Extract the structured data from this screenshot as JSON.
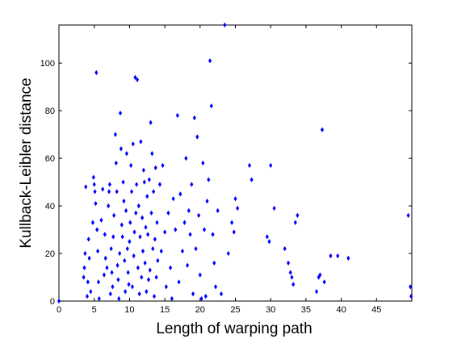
{
  "chart_data": {
    "type": "scatter",
    "title": "",
    "xlabel": "Length of warping path",
    "ylabel": "Kullback-Leibler distance",
    "xlim": [
      0,
      50
    ],
    "ylim": [
      0,
      116
    ],
    "xticks": [
      0,
      5,
      10,
      15,
      20,
      25,
      30,
      35,
      40,
      45
    ],
    "yticks": [
      0,
      20,
      40,
      60,
      80,
      100
    ],
    "grid": false,
    "legend": "none",
    "marker_color": "#0000ff",
    "series": [
      {
        "name": "",
        "points": [
          [
            0,
            0
          ],
          [
            3.5,
            10
          ],
          [
            3.6,
            14
          ],
          [
            3.7,
            20
          ],
          [
            3.8,
            48
          ],
          [
            4.0,
            2
          ],
          [
            4.1,
            8
          ],
          [
            4.2,
            26
          ],
          [
            4.3,
            18
          ],
          [
            4.5,
            4
          ],
          [
            4.8,
            33
          ],
          [
            4.9,
            52
          ],
          [
            5.0,
            49
          ],
          [
            5.1,
            46
          ],
          [
            5.2,
            41
          ],
          [
            5.3,
            96
          ],
          [
            5.4,
            30
          ],
          [
            5.5,
            21
          ],
          [
            5.6,
            8
          ],
          [
            5.7,
            1
          ],
          [
            6.0,
            34
          ],
          [
            6.2,
            47
          ],
          [
            6.4,
            11
          ],
          [
            6.5,
            28
          ],
          [
            6.6,
            18
          ],
          [
            6.8,
            14
          ],
          [
            7.0,
            40
          ],
          [
            7.1,
            46
          ],
          [
            7.2,
            49
          ],
          [
            7.3,
            3
          ],
          [
            7.4,
            22
          ],
          [
            7.5,
            12
          ],
          [
            7.6,
            6
          ],
          [
            7.7,
            27
          ],
          [
            7.8,
            36
          ],
          [
            8.0,
            70
          ],
          [
            8.1,
            58
          ],
          [
            8.2,
            46
          ],
          [
            8.3,
            15
          ],
          [
            8.4,
            9
          ],
          [
            8.5,
            1
          ],
          [
            8.6,
            20
          ],
          [
            8.7,
            79
          ],
          [
            8.8,
            64
          ],
          [
            8.9,
            32
          ],
          [
            9.0,
            27
          ],
          [
            9.1,
            50
          ],
          [
            9.2,
            42
          ],
          [
            9.3,
            17
          ],
          [
            9.4,
            4
          ],
          [
            9.5,
            38
          ],
          [
            9.6,
            62
          ],
          [
            9.7,
            22
          ],
          [
            9.8,
            12
          ],
          [
            9.9,
            7
          ],
          [
            10.0,
            25
          ],
          [
            10.1,
            33
          ],
          [
            10.2,
            57
          ],
          [
            10.3,
            46
          ],
          [
            10.4,
            6
          ],
          [
            10.5,
            66
          ],
          [
            10.6,
            19
          ],
          [
            10.7,
            29
          ],
          [
            10.8,
            94
          ],
          [
            10.9,
            37
          ],
          [
            11.0,
            49
          ],
          [
            11.1,
            93
          ],
          [
            11.2,
            14
          ],
          [
            11.3,
            40
          ],
          [
            11.4,
            3
          ],
          [
            11.5,
            27
          ],
          [
            11.6,
            67
          ],
          [
            11.7,
            10
          ],
          [
            11.8,
            35
          ],
          [
            11.9,
            21
          ],
          [
            12.0,
            55
          ],
          [
            12.1,
            50
          ],
          [
            12.2,
            16
          ],
          [
            12.3,
            31
          ],
          [
            12.4,
            4
          ],
          [
            12.5,
            44
          ],
          [
            12.6,
            28
          ],
          [
            12.7,
            9
          ],
          [
            12.8,
            51
          ],
          [
            12.9,
            13
          ],
          [
            13.0,
            75
          ],
          [
            13.1,
            37
          ],
          [
            13.2,
            62
          ],
          [
            13.3,
            22
          ],
          [
            13.4,
            46
          ],
          [
            13.5,
            2
          ],
          [
            13.6,
            26
          ],
          [
            13.7,
            56
          ],
          [
            13.8,
            10
          ],
          [
            13.9,
            33
          ],
          [
            14.0,
            17
          ],
          [
            14.3,
            49
          ],
          [
            14.5,
            21
          ],
          [
            14.7,
            57
          ],
          [
            15.0,
            29
          ],
          [
            15.2,
            6
          ],
          [
            15.5,
            37
          ],
          [
            15.8,
            14
          ],
          [
            16.0,
            1
          ],
          [
            16.2,
            43
          ],
          [
            16.5,
            30
          ],
          [
            16.8,
            78
          ],
          [
            17.0,
            8
          ],
          [
            17.2,
            45
          ],
          [
            17.5,
            21
          ],
          [
            17.8,
            33
          ],
          [
            18.0,
            60
          ],
          [
            18.2,
            15
          ],
          [
            18.4,
            38
          ],
          [
            18.6,
            28
          ],
          [
            18.8,
            49
          ],
          [
            19.0,
            3
          ],
          [
            19.2,
            77
          ],
          [
            19.4,
            22
          ],
          [
            19.6,
            69
          ],
          [
            19.8,
            36
          ],
          [
            20.0,
            11
          ],
          [
            20.2,
            1
          ],
          [
            20.4,
            58
          ],
          [
            20.6,
            30
          ],
          [
            20.8,
            2
          ],
          [
            21.0,
            42
          ],
          [
            21.2,
            51
          ],
          [
            21.4,
            101
          ],
          [
            21.6,
            82
          ],
          [
            21.8,
            28
          ],
          [
            22.0,
            16
          ],
          [
            22.2,
            6
          ],
          [
            22.5,
            38
          ],
          [
            23.0,
            3
          ],
          [
            23.5,
            116
          ],
          [
            24.0,
            20
          ],
          [
            24.5,
            33
          ],
          [
            24.8,
            29
          ],
          [
            25.0,
            43
          ],
          [
            25.3,
            39
          ],
          [
            27.0,
            57
          ],
          [
            27.3,
            51
          ],
          [
            29.5,
            27
          ],
          [
            29.8,
            25
          ],
          [
            30.0,
            57
          ],
          [
            30.5,
            39
          ],
          [
            32.0,
            22
          ],
          [
            32.5,
            16
          ],
          [
            32.8,
            12
          ],
          [
            33.0,
            10
          ],
          [
            33.2,
            7
          ],
          [
            33.5,
            33
          ],
          [
            33.8,
            36
          ],
          [
            36.5,
            4
          ],
          [
            36.8,
            10
          ],
          [
            37.0,
            11
          ],
          [
            37.3,
            72
          ],
          [
            37.6,
            8
          ],
          [
            38.5,
            19
          ],
          [
            39.5,
            19
          ],
          [
            41.0,
            18
          ],
          [
            49.5,
            36
          ],
          [
            49.8,
            6
          ],
          [
            49.9,
            2
          ]
        ]
      }
    ]
  }
}
